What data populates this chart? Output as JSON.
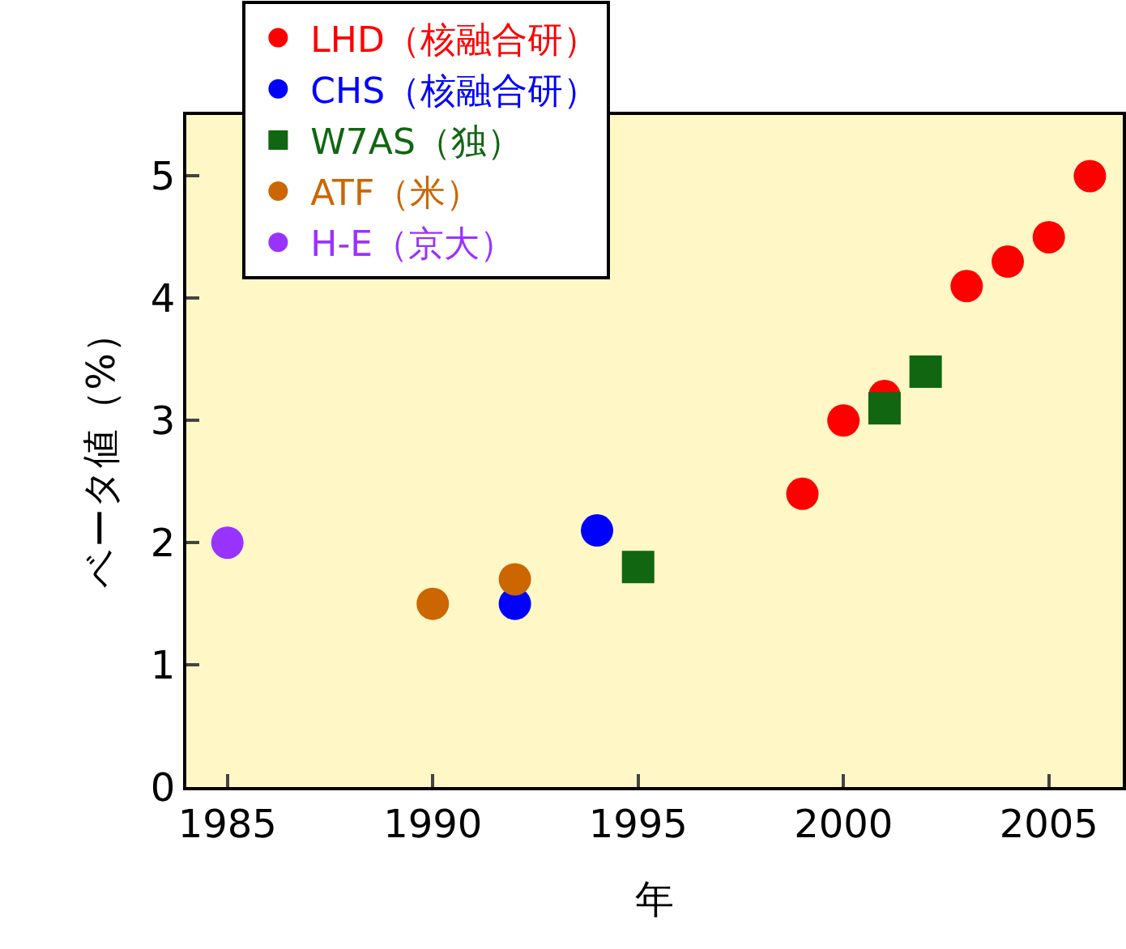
{
  "chart_data": {
    "type": "scatter",
    "xlabel": "年",
    "ylabel": "ベータ値（%）",
    "xlim": [
      1984,
      2006.8
    ],
    "xticks": [
      1985,
      1990,
      1995,
      2000,
      2005
    ],
    "ylim": [
      0,
      5.5
    ],
    "yticks": [
      0,
      1,
      2,
      3,
      4,
      5
    ],
    "grid": false,
    "legend": "top left",
    "series": [
      {
        "name": "LHD（核融合研）",
        "color": "#ff0000",
        "marker": "circle",
        "x": [
          1999,
          2000,
          2001,
          2003,
          2004,
          2005,
          2006
        ],
        "values": [
          2.4,
          3.0,
          3.2,
          4.1,
          4.3,
          4.5,
          5.0
        ]
      },
      {
        "name": "CHS（核融合研）",
        "color": "#0000ff",
        "marker": "circle",
        "x": [
          1992,
          1994
        ],
        "values": [
          1.5,
          2.1
        ]
      },
      {
        "name": "W7AS（独）",
        "color": "#116611",
        "marker": "square",
        "x": [
          1995,
          2001,
          2002
        ],
        "values": [
          1.8,
          3.1,
          3.4
        ]
      },
      {
        "name": "ATF（米）",
        "color": "#cc6600",
        "marker": "circle",
        "x": [
          1990,
          1992
        ],
        "values": [
          1.5,
          1.7
        ]
      },
      {
        "name": "H-E（京大）",
        "color": "#9933ff",
        "marker": "circle",
        "x": [
          1985
        ],
        "values": [
          2.0
        ]
      }
    ]
  }
}
